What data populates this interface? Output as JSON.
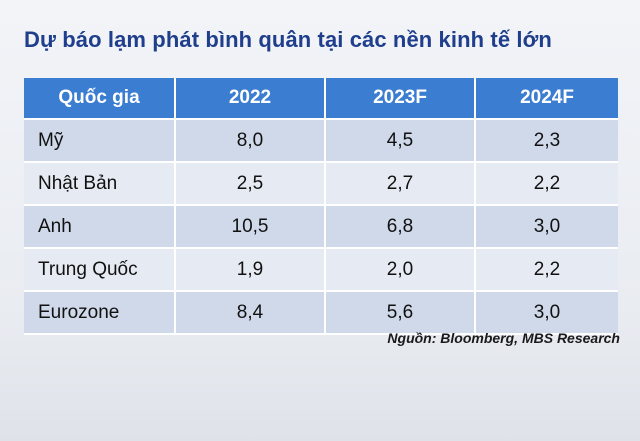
{
  "title": "Dự báo lạm phát bình quân tại các nền kinh tế lớn",
  "table": {
    "headers": [
      "Quốc gia",
      "2022",
      "2023F",
      "2024F"
    ],
    "rows": [
      [
        "Mỹ",
        "8,0",
        "4,5",
        "2,3"
      ],
      [
        "Nhật Bản",
        "2,5",
        "2,7",
        "2,2"
      ],
      [
        "Anh",
        "10,5",
        "6,8",
        "3,0"
      ],
      [
        "Trung Quốc",
        "1,9",
        "2,0",
        "2,2"
      ],
      [
        "Eurozone",
        "8,4",
        "5,6",
        "3,0"
      ]
    ]
  },
  "source": "Nguồn: Bloomberg, MBS Research",
  "colors": {
    "title": "#1f3e8c",
    "header_bg": "#3a7dd1",
    "row_shaded": "#cfd9e9",
    "row_plain": "#e6ebf3"
  }
}
